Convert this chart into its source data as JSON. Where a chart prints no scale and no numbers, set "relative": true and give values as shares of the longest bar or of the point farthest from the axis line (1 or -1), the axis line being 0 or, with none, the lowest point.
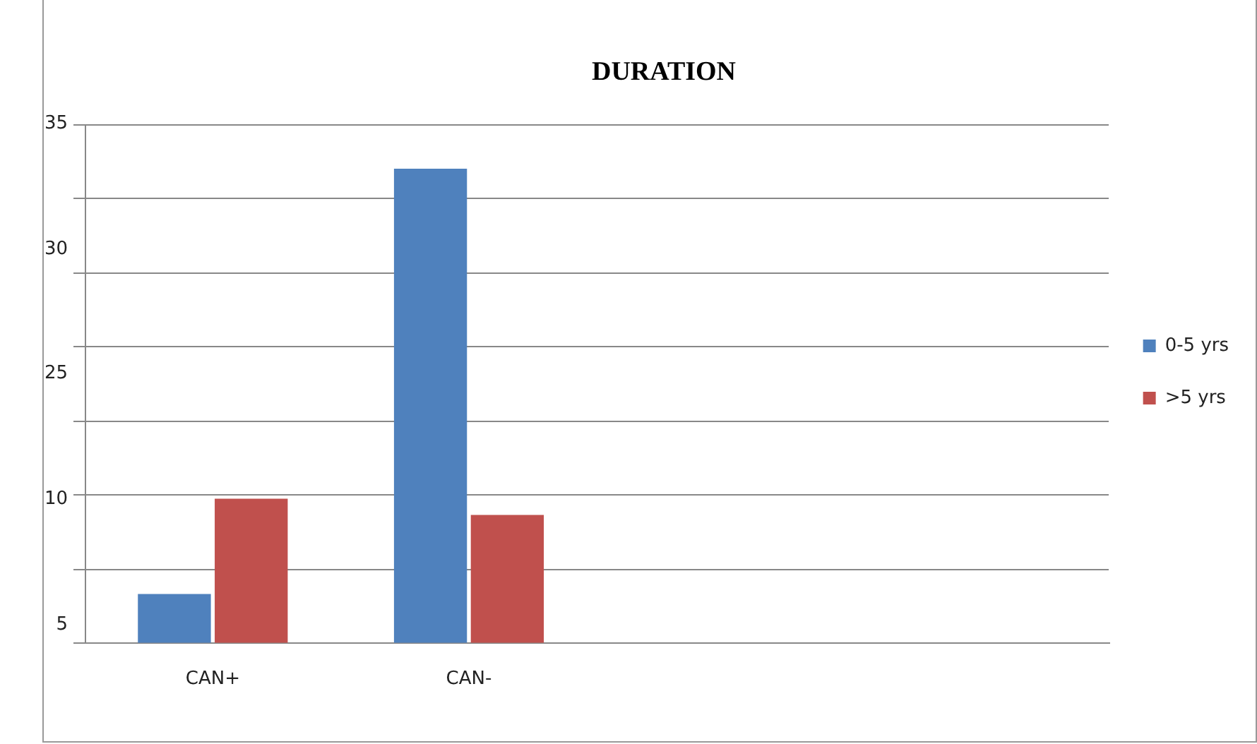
{
  "chart_data": {
    "type": "bar",
    "title": "DURATION",
    "categories": [
      "CAN+",
      "CAN-",
      null,
      null
    ],
    "series": [
      {
        "name": "0-5 yrs",
        "color": "#4f81bd",
        "values": [
          0.103,
          1,
          null,
          null
        ]
      },
      {
        "name": ">5 yrs",
        "color": "#c0504d",
        "values": [
          0.304,
          0.27,
          null,
          null
        ]
      }
    ],
    "relative": true,
    "annotations": [
      "35",
      "30",
      "25",
      "10",
      "5"
    ],
    "legend": "right"
  }
}
